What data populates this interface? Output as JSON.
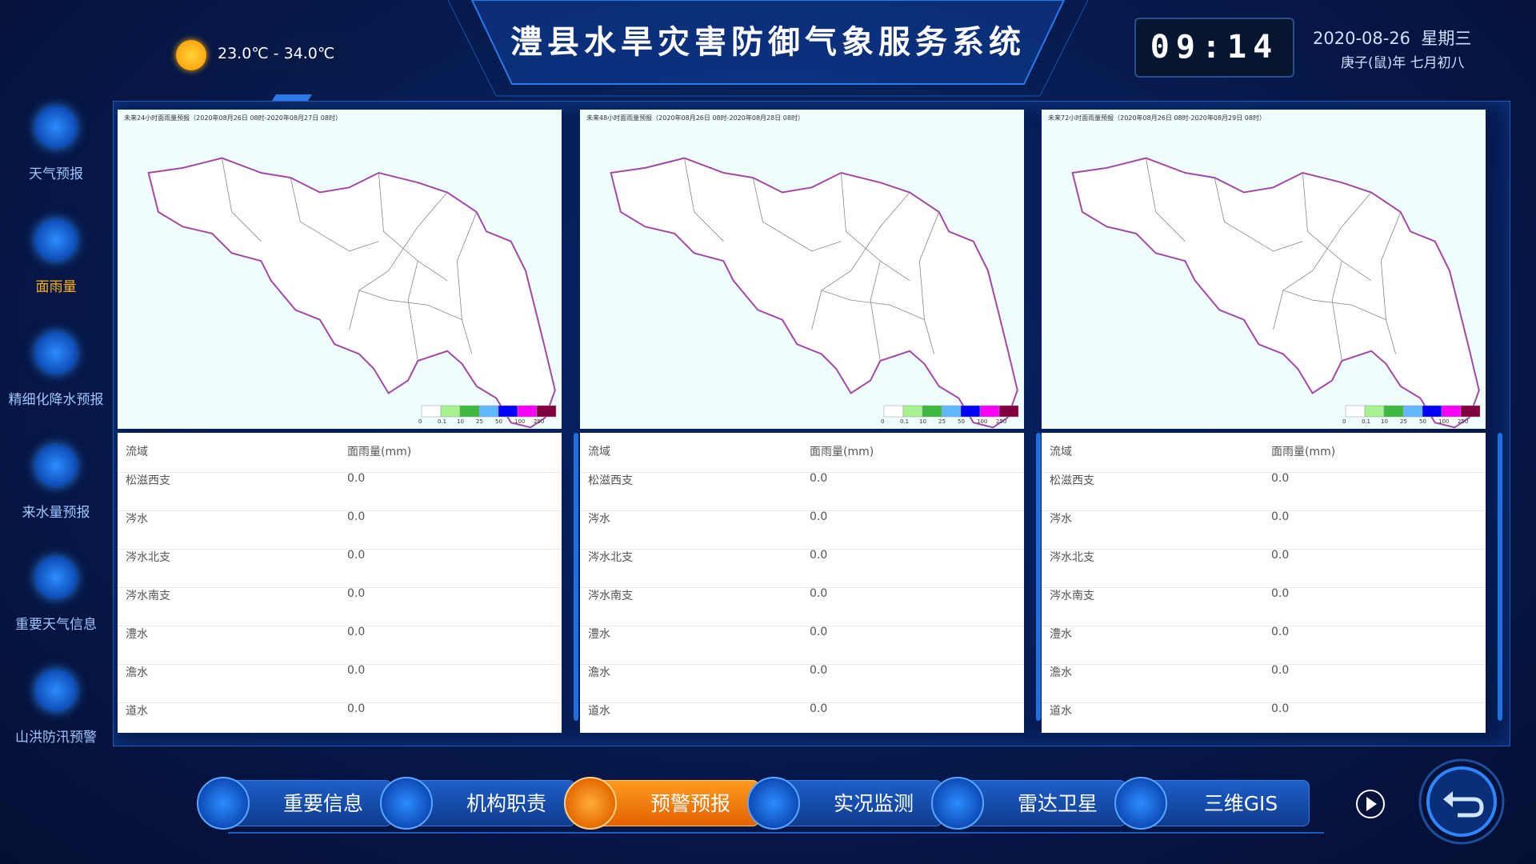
{
  "header": {
    "title": "澧县水旱灾害防御气象服务系统",
    "weather": "23.0℃ - 34.0℃",
    "time": "09:14",
    "date": "2020-08-26",
    "weekday": "星期三",
    "lunar": "庚子(鼠)年 七月初八"
  },
  "sidebar": [
    {
      "label": "天气预报"
    },
    {
      "label": "面雨量",
      "active": true
    },
    {
      "label": "精细化降水预报"
    },
    {
      "label": "来水量预报"
    },
    {
      "label": "重要天气信息"
    },
    {
      "label": "山洪防汛预警"
    }
  ],
  "panels": [
    {
      "map_title": "未来24小时面雨量预报（2020年08月26日 08时-2020年08月27日 08时）",
      "legend_ticks": [
        "0",
        "0.1",
        "10",
        "25",
        "50",
        "100",
        "250"
      ],
      "table": {
        "columns": [
          "流域",
          "面雨量(mm)"
        ],
        "rows": [
          [
            "松滋西支",
            "0.0"
          ],
          [
            "涔水",
            "0.0"
          ],
          [
            "涔水北支",
            "0.0"
          ],
          [
            "涔水南支",
            "0.0"
          ],
          [
            "澧水",
            "0.0"
          ],
          [
            "澹水",
            "0.0"
          ],
          [
            "道水",
            "0.0"
          ]
        ]
      }
    },
    {
      "map_title": "未来48小时面雨量预报（2020年08月26日 08时-2020年08月28日 08时）",
      "legend_ticks": [
        "0",
        "0.1",
        "10",
        "25",
        "50",
        "100",
        "250"
      ],
      "table": {
        "columns": [
          "流域",
          "面雨量(mm)"
        ],
        "rows": [
          [
            "松滋西支",
            "0.0"
          ],
          [
            "涔水",
            "0.0"
          ],
          [
            "涔水北支",
            "0.0"
          ],
          [
            "涔水南支",
            "0.0"
          ],
          [
            "澧水",
            "0.0"
          ],
          [
            "澹水",
            "0.0"
          ],
          [
            "道水",
            "0.0"
          ]
        ]
      }
    },
    {
      "map_title": "未来72小时面雨量预报（2020年08月26日 08时-2020年08月29日 08时）",
      "legend_ticks": [
        "0",
        "0.1",
        "10",
        "25",
        "50",
        "100",
        "250"
      ],
      "table": {
        "columns": [
          "流域",
          "面雨量(mm)"
        ],
        "rows": [
          [
            "松滋西支",
            "0.0"
          ],
          [
            "涔水",
            "0.0"
          ],
          [
            "涔水北支",
            "0.0"
          ],
          [
            "涔水南支",
            "0.0"
          ],
          [
            "澧水",
            "0.0"
          ],
          [
            "澹水",
            "0.0"
          ],
          [
            "道水",
            "0.0"
          ]
        ]
      }
    }
  ],
  "nav": [
    {
      "label": "重要信息"
    },
    {
      "label": "机构职责"
    },
    {
      "label": "预警预报",
      "active": true
    },
    {
      "label": "实况监测"
    },
    {
      "label": "雷达卫星"
    },
    {
      "label": "三维GIS"
    }
  ]
}
